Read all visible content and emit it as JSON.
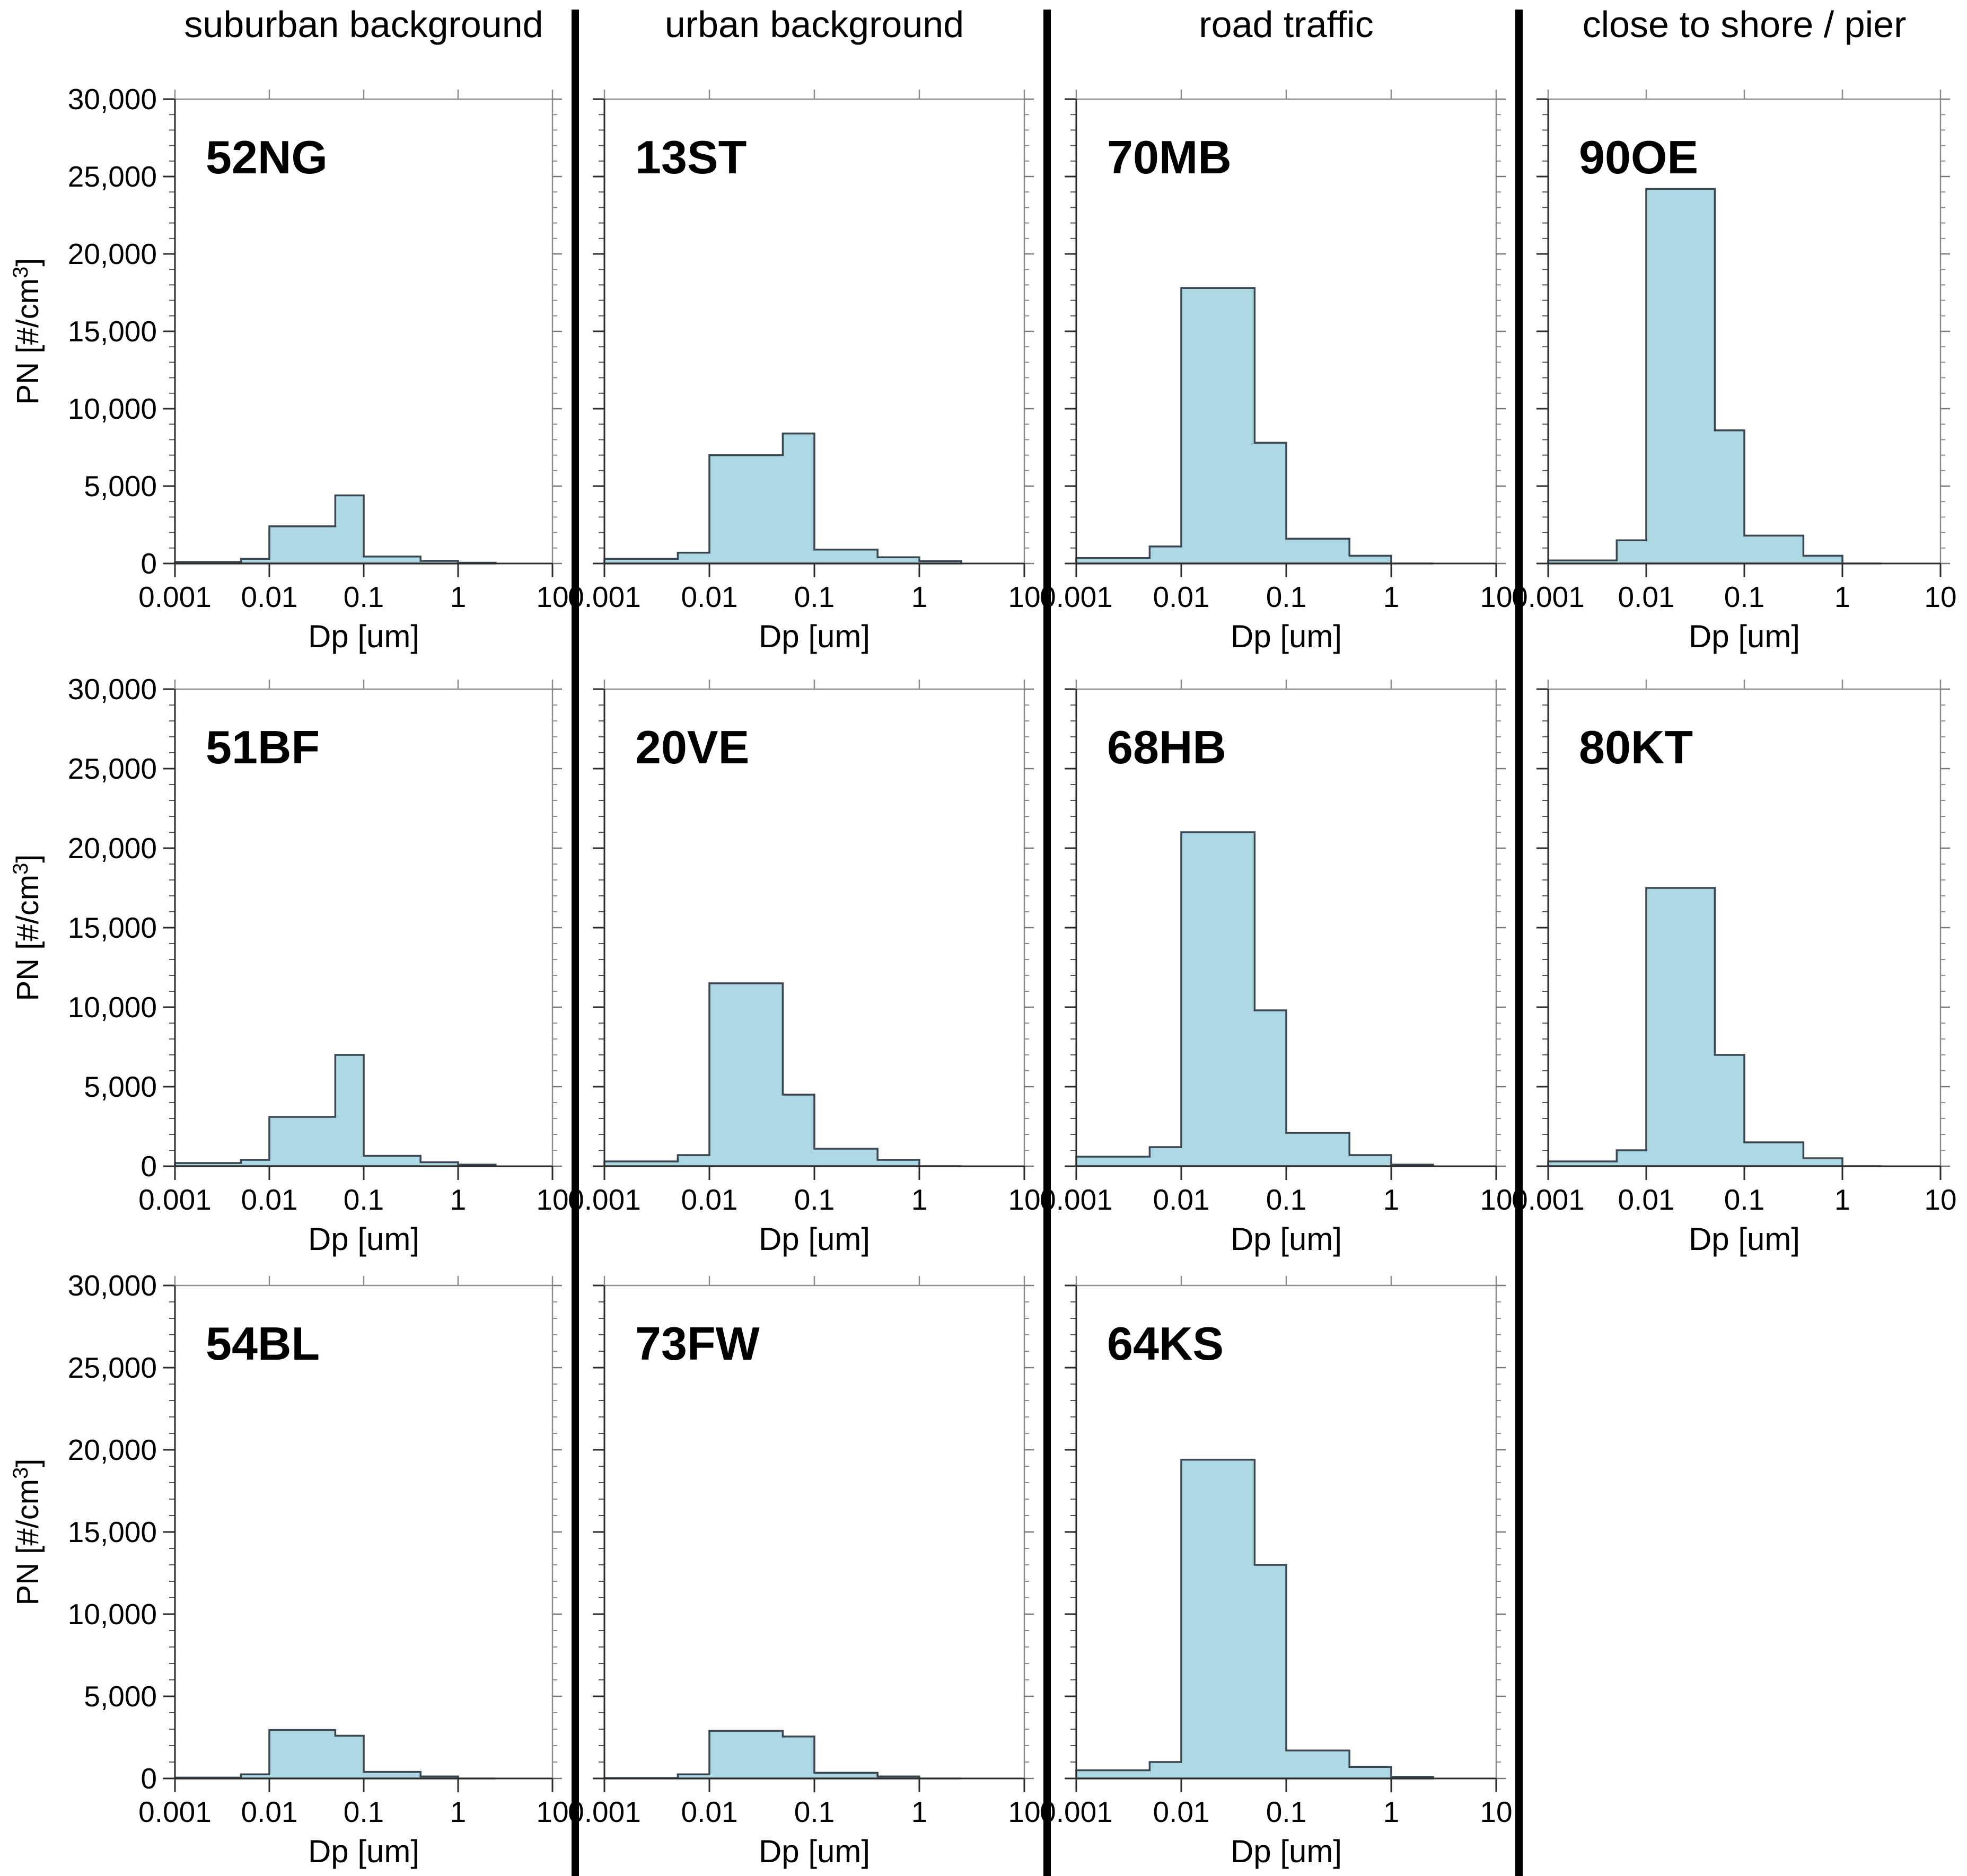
{
  "figure_title": "",
  "colors": {
    "bar_fill": "#aed7e4",
    "bar_stroke": "#3a4750",
    "axis_dark": "#2b2b2b",
    "axis_light": "#8c8c8c",
    "divider": "#000000",
    "text": "#000000"
  },
  "chart_data": {
    "type": "bar",
    "subtype": "histogram-small-multiples",
    "xlabel": "Dp [um]",
    "ylabel": "PN [#/cm3]",
    "ylabel_display": {
      "prefix": "PN [#/cm",
      "superscript": "3",
      "suffix": "]"
    },
    "x_scale": "log",
    "xlim": [
      0.001,
      10
    ],
    "ylim": [
      0,
      30000
    ],
    "grid": false,
    "x_ticks": [
      "0.001",
      "0.01",
      "0.1",
      "1",
      "10"
    ],
    "y_ticks": [
      "0",
      "5,000",
      "10,000",
      "15,000",
      "20,000",
      "25,000",
      "30,000"
    ],
    "y_major_step": 5000,
    "y_minor_step": 1000,
    "bin_edges_um": [
      0.001,
      0.005,
      0.01,
      0.05,
      0.1,
      0.4,
      1,
      2.5
    ],
    "units": "#/cm3",
    "groups": [
      {
        "label": "suburban background",
        "panels": [
          {
            "id": "52NG",
            "values": [
              100,
              300,
              2400,
              4400,
              450,
              170,
              50
            ]
          },
          {
            "id": "51BF",
            "values": [
              200,
              400,
              3100,
              7000,
              650,
              250,
              100
            ]
          },
          {
            "id": "54BL",
            "values": [
              50,
              250,
              2950,
              2600,
              400,
              120,
              0
            ]
          }
        ]
      },
      {
        "label": "urban background",
        "panels": [
          {
            "id": "13ST",
            "values": [
              300,
              700,
              7000,
              8400,
              900,
              400,
              150
            ]
          },
          {
            "id": "20VE",
            "values": [
              300,
              700,
              11500,
              4500,
              1100,
              400,
              0
            ]
          },
          {
            "id": "73FW",
            "values": [
              30,
              250,
              2900,
              2550,
              350,
              120,
              0
            ]
          }
        ]
      },
      {
        "label": "road traffic",
        "panels": [
          {
            "id": "70MB",
            "values": [
              350,
              1100,
              17800,
              7800,
              1600,
              500,
              0
            ]
          },
          {
            "id": "68HB",
            "values": [
              600,
              1200,
              21000,
              9800,
              2100,
              700,
              100
            ]
          },
          {
            "id": "64KS",
            "values": [
              500,
              1000,
              19400,
              13000,
              1700,
              700,
              100
            ]
          }
        ]
      },
      {
        "label": "close to shore / pier",
        "panels": [
          {
            "id": "90OE",
            "values": [
              200,
              1500,
              24200,
              8600,
              1800,
              500,
              0
            ]
          },
          {
            "id": "80KT",
            "values": [
              300,
              1000,
              17500,
              7000,
              1500,
              500,
              0
            ]
          }
        ]
      }
    ]
  }
}
